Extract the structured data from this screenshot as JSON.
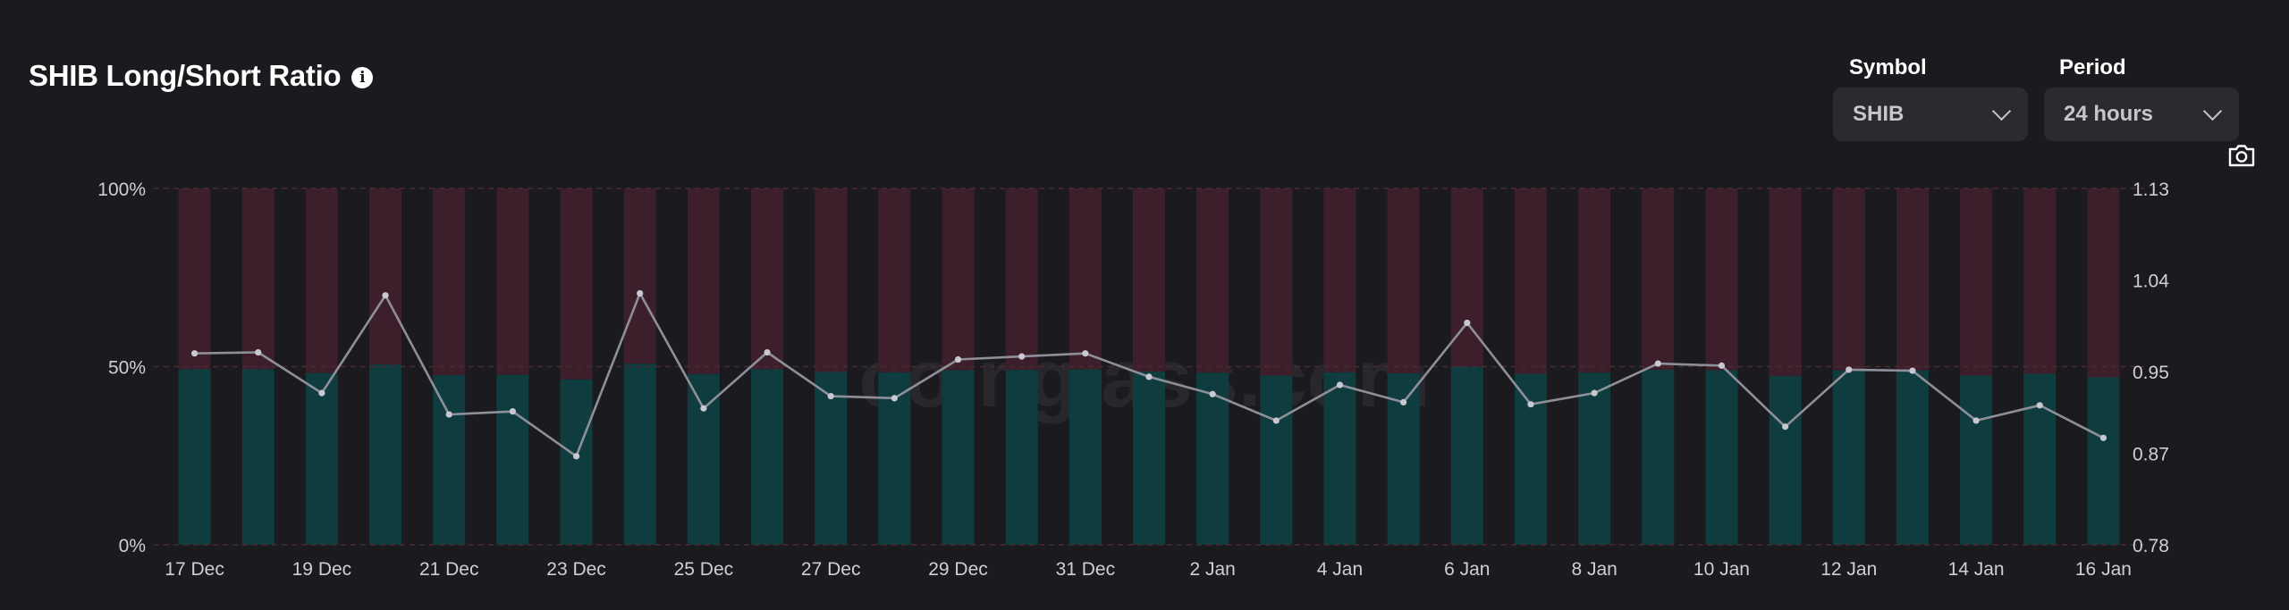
{
  "header": {
    "title": "SHIB Long/Short Ratio",
    "info_icon": "info-icon"
  },
  "controls": {
    "symbol": {
      "label": "Symbol",
      "value": "SHIB"
    },
    "period": {
      "label": "Period",
      "value": "24 hours"
    },
    "screenshot_icon": "camera-icon"
  },
  "watermark": "coinglass.com",
  "colors": {
    "long": "#0f3d3f",
    "short": "#3c1f2b",
    "ratio_line": "#8e8f99",
    "grid": "#4a2a33",
    "axis_text": "#cfcfd4",
    "background": "#1b1a1f"
  },
  "chart_data": {
    "type": "bar",
    "stacked": true,
    "categories": [
      "17 Dec",
      "18 Dec",
      "19 Dec",
      "20 Dec",
      "21 Dec",
      "22 Dec",
      "23 Dec",
      "24 Dec",
      "25 Dec",
      "26 Dec",
      "27 Dec",
      "28 Dec",
      "29 Dec",
      "30 Dec",
      "31 Dec",
      "1 Jan",
      "2 Jan",
      "3 Jan",
      "4 Jan",
      "5 Jan",
      "6 Jan",
      "7 Jan",
      "8 Jan",
      "9 Jan",
      "10 Jan",
      "11 Jan",
      "12 Jan",
      "13 Jan",
      "14 Jan",
      "15 Jan",
      "16 Jan"
    ],
    "x_tick_labels": [
      "17 Dec",
      "19 Dec",
      "21 Dec",
      "23 Dec",
      "25 Dec",
      "27 Dec",
      "29 Dec",
      "31 Dec",
      "2 Jan",
      "4 Jan",
      "6 Jan",
      "8 Jan",
      "10 Jan",
      "12 Jan",
      "14 Jan",
      "16 Jan"
    ],
    "series": [
      {
        "values": [
          49.3,
          49.3,
          48.2,
          50.6,
          47.6,
          47.7,
          46.4,
          50.8,
          47.9,
          49.3,
          48.5,
          48.4,
          49.0,
          49.1,
          49.2,
          48.6,
          48.3,
          47.5,
          48.4,
          48.1,
          50.0,
          48.0,
          48.3,
          49.1,
          49.0,
          47.4,
          48.9,
          48.9,
          47.5,
          48.0,
          47.0
        ]
      },
      {
        "values": [
          50.7,
          50.7,
          51.8,
          49.4,
          52.4,
          52.3,
          53.6,
          49.2,
          52.1,
          50.7,
          51.5,
          51.6,
          51.0,
          50.9,
          50.8,
          51.4,
          51.7,
          52.5,
          51.6,
          51.9,
          50.0,
          52.0,
          51.7,
          50.9,
          51.0,
          52.6,
          51.1,
          51.1,
          52.5,
          52.0,
          53.0
        ]
      },
      {
        "values": [
          0.968,
          0.969,
          0.929,
          1.025,
          0.908,
          0.911,
          0.867,
          1.027,
          0.914,
          0.969,
          0.926,
          0.924,
          0.962,
          0.965,
          0.968,
          0.945,
          0.928,
          0.902,
          0.937,
          0.92,
          0.998,
          0.918,
          0.929,
          0.958,
          0.956,
          0.896,
          0.952,
          0.951,
          0.902,
          0.917,
          0.885
        ]
      }
    ],
    "y_left": {
      "ticks": [
        "0%",
        "50%",
        "100%"
      ],
      "range": [
        0,
        100
      ]
    },
    "y_right": {
      "ticks": [
        "0.78",
        "0.87",
        "0.95",
        "1.04",
        "1.13"
      ],
      "range": [
        0.78,
        1.13
      ]
    },
    "grid": true,
    "legend": "none"
  }
}
